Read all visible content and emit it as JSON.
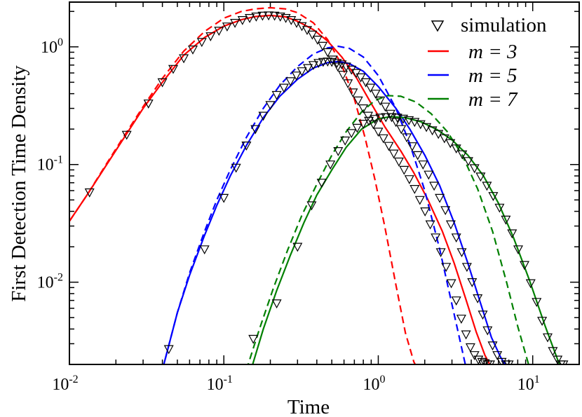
{
  "chart_data": {
    "type": "line",
    "xscale": "log",
    "yscale": "log",
    "xlabel": "Time",
    "ylabel": "First Detection Time Density",
    "xlim": [
      0.01,
      20
    ],
    "ylim": [
      0.002,
      2.4
    ],
    "x_ticks": [
      {
        "value": 0.01,
        "base": "10",
        "exp": "-2"
      },
      {
        "value": 0.1,
        "base": "10",
        "exp": "-1"
      },
      {
        "value": 1,
        "base": "10",
        "exp": "0"
      },
      {
        "value": 10,
        "base": "10",
        "exp": "1"
      }
    ],
    "y_ticks": [
      {
        "value": 0.01,
        "base": "10",
        "exp": "-2"
      },
      {
        "value": 0.1,
        "base": "10",
        "exp": "-1"
      },
      {
        "value": 1,
        "base": "10",
        "exp": "0"
      }
    ],
    "legend": [
      {
        "label": "simulation",
        "style": "triangle-down",
        "color": "#000000"
      },
      {
        "label": "m = 3",
        "style": "line",
        "color": "#ff0000"
      },
      {
        "label": "m = 5",
        "style": "line",
        "color": "#0000ff"
      },
      {
        "label": "m = 7",
        "style": "line",
        "color": "#008000"
      }
    ],
    "series": [
      {
        "name": "simulation m=3",
        "kind": "markers",
        "color": "#000000",
        "x": [
          0.0135,
          0.0235,
          0.0325,
          0.04,
          0.047,
          0.055,
          0.063,
          0.072,
          0.082,
          0.093,
          0.105,
          0.118,
          0.132,
          0.147,
          0.162,
          0.178,
          0.195,
          0.213,
          0.232,
          0.252,
          0.273,
          0.296,
          0.32,
          0.346,
          0.374,
          0.404,
          0.436,
          0.47,
          0.507,
          0.547,
          0.59,
          0.636,
          0.686,
          0.74,
          0.8,
          0.86,
          0.93,
          1.0,
          1.08,
          1.17,
          1.26,
          1.36,
          1.47,
          1.59,
          1.72,
          1.86,
          2.01,
          2.17,
          2.35,
          2.54,
          2.75,
          2.97,
          3.2,
          3.45,
          3.7,
          3.95,
          4.2,
          4.45,
          4.7,
          4.9,
          5.1,
          5.3
        ],
        "y": [
          0.058,
          0.179,
          0.33,
          0.5,
          0.65,
          0.8,
          0.95,
          1.1,
          1.23,
          1.37,
          1.49,
          1.6,
          1.69,
          1.76,
          1.81,
          1.84,
          1.85,
          1.84,
          1.81,
          1.76,
          1.69,
          1.6,
          1.5,
          1.39,
          1.27,
          1.15,
          1.02,
          0.9,
          0.78,
          0.68,
          0.58,
          0.49,
          0.41,
          0.35,
          0.3,
          0.26,
          0.22,
          0.19,
          0.167,
          0.144,
          0.124,
          0.106,
          0.09,
          0.075,
          0.062,
          0.05,
          0.04,
          0.031,
          0.024,
          0.018,
          0.0135,
          0.0098,
          0.007,
          0.0049,
          0.0036,
          0.0028,
          0.0024,
          0.0022,
          0.0021,
          0.00205,
          0.002,
          0.002
        ]
      },
      {
        "name": "simulation m=5",
        "kind": "markers",
        "color": "#000000",
        "x": [
          0.044,
          0.075,
          0.1,
          0.12,
          0.14,
          0.16,
          0.18,
          0.2,
          0.22,
          0.245,
          0.27,
          0.295,
          0.32,
          0.35,
          0.38,
          0.41,
          0.44,
          0.47,
          0.5,
          0.54,
          0.58,
          0.62,
          0.67,
          0.72,
          0.77,
          0.83,
          0.89,
          0.96,
          1.03,
          1.11,
          1.2,
          1.3,
          1.41,
          1.53,
          1.66,
          1.8,
          1.95,
          2.12,
          2.3,
          2.5,
          2.72,
          2.95,
          3.2,
          3.47,
          3.75,
          4.05,
          4.4,
          4.75,
          5.1,
          5.5,
          5.9,
          6.3,
          6.7,
          7.0
        ],
        "y": [
          0.0027,
          0.019,
          0.052,
          0.094,
          0.145,
          0.2,
          0.26,
          0.32,
          0.39,
          0.45,
          0.51,
          0.57,
          0.62,
          0.66,
          0.7,
          0.73,
          0.745,
          0.75,
          0.745,
          0.73,
          0.71,
          0.68,
          0.64,
          0.6,
          0.55,
          0.5,
          0.45,
          0.4,
          0.35,
          0.31,
          0.27,
          0.23,
          0.2,
          0.17,
          0.143,
          0.12,
          0.1,
          0.082,
          0.066,
          0.052,
          0.041,
          0.031,
          0.024,
          0.018,
          0.0135,
          0.01,
          0.0073,
          0.0053,
          0.0039,
          0.0029,
          0.0024,
          0.0021,
          0.002,
          0.002
        ]
      },
      {
        "name": "simulation m=7",
        "kind": "markers",
        "color": "#000000",
        "x": [
          0.155,
          0.22,
          0.3,
          0.37,
          0.43,
          0.49,
          0.55,
          0.61,
          0.67,
          0.73,
          0.8,
          0.87,
          0.95,
          1.03,
          1.12,
          1.22,
          1.33,
          1.45,
          1.58,
          1.72,
          1.88,
          2.05,
          2.24,
          2.45,
          2.68,
          2.93,
          3.2,
          3.5,
          3.83,
          4.2,
          4.6,
          5.05,
          5.55,
          6.1,
          6.7,
          7.35,
          8.05,
          8.85,
          9.7,
          10.6,
          11.5,
          12.5,
          13.5,
          14.5,
          15.2,
          15.8
        ],
        "y": [
          0.0033,
          0.0066,
          0.02,
          0.045,
          0.07,
          0.1,
          0.13,
          0.16,
          0.185,
          0.205,
          0.222,
          0.235,
          0.244,
          0.25,
          0.253,
          0.253,
          0.25,
          0.245,
          0.238,
          0.23,
          0.22,
          0.208,
          0.195,
          0.182,
          0.167,
          0.152,
          0.137,
          0.122,
          0.107,
          0.093,
          0.079,
          0.066,
          0.054,
          0.043,
          0.034,
          0.026,
          0.019,
          0.014,
          0.0098,
          0.0068,
          0.0047,
          0.0034,
          0.0026,
          0.0022,
          0.002,
          0.002
        ]
      },
      {
        "name": "m = 3 (solid)",
        "kind": "line",
        "color": "#ff0000",
        "x": [
          0.01,
          0.013,
          0.017,
          0.022,
          0.03,
          0.04,
          0.055,
          0.075,
          0.1,
          0.13,
          0.16,
          0.2,
          0.25,
          0.3,
          0.38,
          0.47,
          0.58,
          0.72,
          0.9,
          1.1,
          1.4,
          1.7,
          2.1,
          2.6,
          3.1,
          3.7,
          4.3,
          4.9,
          5.5
        ],
        "y": [
          0.033,
          0.055,
          0.095,
          0.16,
          0.3,
          0.5,
          0.85,
          1.2,
          1.5,
          1.7,
          1.81,
          1.85,
          1.8,
          1.65,
          1.4,
          1.12,
          0.82,
          0.55,
          0.33,
          0.21,
          0.13,
          0.085,
          0.05,
          0.027,
          0.0145,
          0.0071,
          0.0038,
          0.0024,
          0.0018
        ]
      },
      {
        "name": "m = 3 (dashed)",
        "kind": "dashed",
        "color": "#ff0000",
        "x": [
          0.01,
          0.013,
          0.017,
          0.022,
          0.03,
          0.04,
          0.055,
          0.075,
          0.1,
          0.13,
          0.16,
          0.2,
          0.25,
          0.3,
          0.38,
          0.47,
          0.58,
          0.7,
          0.82,
          0.95,
          1.1,
          1.3,
          1.5,
          1.7,
          1.9
        ],
        "y": [
          0.033,
          0.055,
          0.097,
          0.165,
          0.31,
          0.54,
          0.92,
          1.35,
          1.75,
          2.0,
          2.1,
          2.15,
          2.1,
          1.95,
          1.6,
          1.15,
          0.7,
          0.36,
          0.17,
          0.075,
          0.03,
          0.0095,
          0.0037,
          0.0021,
          0.0016
        ]
      },
      {
        "name": "m = 5 (solid)",
        "kind": "line",
        "color": "#0000ff",
        "x": [
          0.04,
          0.05,
          0.06,
          0.075,
          0.09,
          0.11,
          0.14,
          0.18,
          0.23,
          0.3,
          0.38,
          0.47,
          0.55,
          0.65,
          0.8,
          1.0,
          1.3,
          1.6,
          2.0,
          2.5,
          3.1,
          3.8,
          4.6,
          5.4,
          6.2,
          7.0
        ],
        "y": [
          0.0018,
          0.0055,
          0.0115,
          0.025,
          0.045,
          0.08,
          0.145,
          0.25,
          0.38,
          0.53,
          0.66,
          0.735,
          0.75,
          0.72,
          0.62,
          0.46,
          0.3,
          0.2,
          0.12,
          0.066,
          0.032,
          0.0145,
          0.0066,
          0.0034,
          0.0023,
          0.0018
        ]
      },
      {
        "name": "m = 5 (dashed)",
        "kind": "dashed",
        "color": "#0000ff",
        "x": [
          0.04,
          0.05,
          0.06,
          0.075,
          0.09,
          0.11,
          0.14,
          0.18,
          0.23,
          0.3,
          0.38,
          0.47,
          0.55,
          0.65,
          0.8,
          1.0,
          1.3,
          1.6,
          2.0,
          2.5,
          3.0,
          3.4,
          3.8
        ],
        "y": [
          0.0018,
          0.0055,
          0.012,
          0.027,
          0.05,
          0.09,
          0.17,
          0.3,
          0.47,
          0.68,
          0.87,
          0.98,
          1.01,
          0.97,
          0.82,
          0.57,
          0.3,
          0.15,
          0.06,
          0.019,
          0.0065,
          0.0031,
          0.0016
        ]
      },
      {
        "name": "m = 7 (solid)",
        "kind": "line",
        "color": "#008000",
        "x": [
          0.15,
          0.18,
          0.22,
          0.27,
          0.33,
          0.4,
          0.5,
          0.62,
          0.78,
          1.0,
          1.2,
          1.5,
          1.9,
          2.4,
          3.0,
          3.8,
          4.8,
          6.0,
          7.5,
          9.5,
          12.0,
          14.5,
          16.0
        ],
        "y": [
          0.0018,
          0.004,
          0.0085,
          0.017,
          0.032,
          0.055,
          0.09,
          0.14,
          0.2,
          0.245,
          0.255,
          0.25,
          0.23,
          0.198,
          0.162,
          0.12,
          0.08,
          0.047,
          0.024,
          0.0105,
          0.0043,
          0.0022,
          0.0017
        ]
      },
      {
        "name": "m = 7 (dashed)",
        "kind": "dashed",
        "color": "#008000",
        "x": [
          0.14,
          0.17,
          0.21,
          0.26,
          0.32,
          0.4,
          0.5,
          0.62,
          0.78,
          0.95,
          1.15,
          1.4,
          1.75,
          2.2,
          2.8,
          3.5,
          4.4,
          5.5,
          6.8,
          8.0,
          9.3,
          10.5
        ],
        "y": [
          0.0018,
          0.004,
          0.009,
          0.019,
          0.037,
          0.068,
          0.12,
          0.19,
          0.28,
          0.35,
          0.385,
          0.38,
          0.34,
          0.27,
          0.19,
          0.12,
          0.062,
          0.027,
          0.0098,
          0.0042,
          0.0021,
          0.0012
        ]
      }
    ]
  }
}
